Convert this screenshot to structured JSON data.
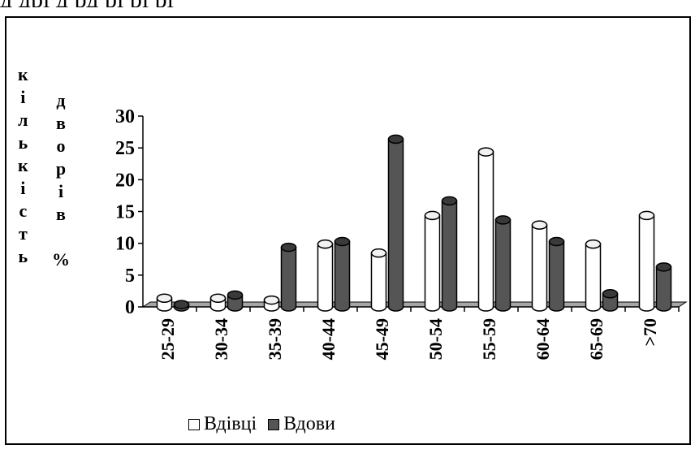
{
  "page": {
    "top_text": "д       дрі    д                  рд      рі       рі   рі"
  },
  "chart_data": {
    "type": "bar",
    "title": "",
    "xlabel": "",
    "ylabel_letters": [
      "к",
      "і",
      "л",
      "ь",
      "к",
      "і",
      "с",
      "т",
      "ь"
    ],
    "ylabel2_letters": [
      "д",
      "в",
      "о",
      "р",
      "і",
      "в",
      "%"
    ],
    "categories": [
      "25-29",
      "30-34",
      "35-39",
      "40-44",
      "45-49",
      "50-54",
      "55-59",
      "60-64",
      "65-69",
      ">70"
    ],
    "series": [
      {
        "name": "Вдівці",
        "values": [
          1.5,
          1.5,
          1.2,
          10,
          8.6,
          14.5,
          24.5,
          13,
          10,
          14.5
        ],
        "color": "#ffffff"
      },
      {
        "name": "Вдови",
        "values": [
          0.5,
          2,
          9.5,
          10.4,
          26.5,
          16.8,
          13.8,
          10.4,
          2.2,
          6.4
        ],
        "color": "#555555"
      }
    ],
    "ylim": [
      0,
      30
    ],
    "yticks": [
      0,
      5,
      10,
      15,
      20,
      25,
      30
    ],
    "grid": false,
    "legend_position": "bottom-left"
  }
}
